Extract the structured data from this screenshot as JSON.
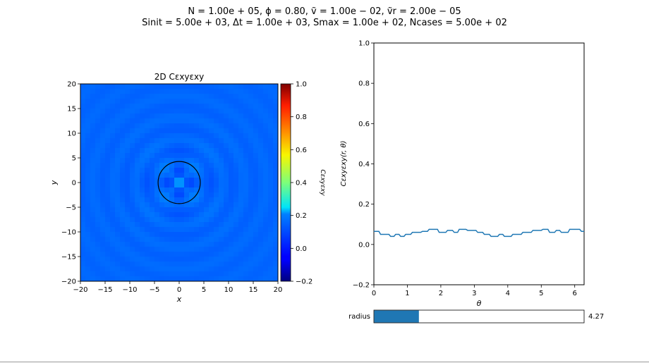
{
  "figure": {
    "suptitle_line1": "N = 1.00e + 05, ϕ = 0.80, ṽ = 1.00e − 02, ṽr = 2.00e − 05",
    "suptitle_line2": "Sinit = 5.00e + 03, Δt = 1.00e + 03, Smax = 1.00e + 02, Ncases = 5.00e + 02"
  },
  "slider": {
    "label": "radius",
    "value_text": "4.27",
    "value": 4.27,
    "fraction": 0.213,
    "fill_color": "#1f77b4"
  },
  "chart_data": [
    {
      "type": "heatmap",
      "title": "2D Cεxyεxy",
      "xlabel": "x",
      "ylabel": "y",
      "xlim": [
        -20,
        20
      ],
      "ylim": [
        -20,
        20
      ],
      "x_ticks": [
        -20,
        -15,
        -10,
        -5,
        0,
        5,
        10,
        15,
        20
      ],
      "x_tick_labels": [
        "−20",
        "−15",
        "−10",
        "−5",
        "0",
        "5",
        "10",
        "15",
        "20"
      ],
      "y_ticks": [
        -20,
        -15,
        -10,
        -5,
        0,
        5,
        10,
        15,
        20
      ],
      "y_tick_labels": [
        "−20",
        "−15",
        "−10",
        "−5",
        "0",
        "5",
        "10",
        "15",
        "20"
      ],
      "grid": false,
      "colormap": "jet",
      "grid_size": 40,
      "circle": {
        "center": [
          0,
          0
        ],
        "radius": 4.27,
        "color": "#000000"
      },
      "colorbar": {
        "label": "Cεxyεxy",
        "vmin": -0.2,
        "vmax": 1.0,
        "ticks": [
          -0.2,
          0.0,
          0.2,
          0.4,
          0.6,
          0.8,
          1.0
        ],
        "tick_labels": [
          "−0.2",
          "0.0",
          "0.2",
          "0.4",
          "0.6",
          "0.8",
          "1.0"
        ]
      }
    },
    {
      "type": "line",
      "title": "",
      "xlabel": "θ",
      "ylabel": "Cεxyεxy(r, θ)",
      "xlim": [
        0,
        6.28
      ],
      "ylim": [
        -0.2,
        1.0
      ],
      "x_ticks": [
        0,
        1,
        2,
        3,
        4,
        5,
        6
      ],
      "x_tick_labels": [
        "0",
        "1",
        "2",
        "3",
        "4",
        "5",
        "6"
      ],
      "y_ticks": [
        -0.2,
        0.0,
        0.2,
        0.4,
        0.6,
        0.8,
        1.0
      ],
      "y_tick_labels": [
        "−0.2",
        "0.0",
        "0.2",
        "0.4",
        "0.6",
        "0.8",
        "1.0"
      ],
      "grid": false,
      "series": [
        {
          "color": "#1f77b4",
          "x": [
            0.0,
            0.15,
            0.2,
            0.45,
            0.5,
            0.6,
            0.65,
            0.75,
            0.8,
            0.9,
            0.95,
            1.1,
            1.15,
            1.4,
            1.45,
            1.6,
            1.65,
            1.9,
            1.95,
            2.15,
            2.2,
            2.35,
            2.4,
            2.5,
            2.55,
            2.75,
            2.8,
            3.05,
            3.1,
            3.25,
            3.3,
            3.45,
            3.5,
            3.7,
            3.75,
            3.85,
            3.9,
            4.1,
            4.15,
            4.4,
            4.45,
            4.7,
            4.75,
            5.0,
            5.05,
            5.2,
            5.25,
            5.4,
            5.45,
            5.55,
            5.6,
            5.8,
            5.85,
            6.15,
            6.2,
            6.28
          ],
          "y": [
            0.065,
            0.065,
            0.05,
            0.05,
            0.04,
            0.04,
            0.05,
            0.05,
            0.04,
            0.04,
            0.05,
            0.05,
            0.06,
            0.06,
            0.065,
            0.065,
            0.075,
            0.075,
            0.06,
            0.06,
            0.07,
            0.07,
            0.06,
            0.06,
            0.075,
            0.075,
            0.07,
            0.07,
            0.06,
            0.06,
            0.05,
            0.05,
            0.04,
            0.04,
            0.05,
            0.05,
            0.04,
            0.04,
            0.05,
            0.05,
            0.06,
            0.06,
            0.07,
            0.07,
            0.075,
            0.075,
            0.06,
            0.06,
            0.07,
            0.07,
            0.06,
            0.06,
            0.075,
            0.075,
            0.065,
            0.065
          ]
        }
      ]
    }
  ]
}
